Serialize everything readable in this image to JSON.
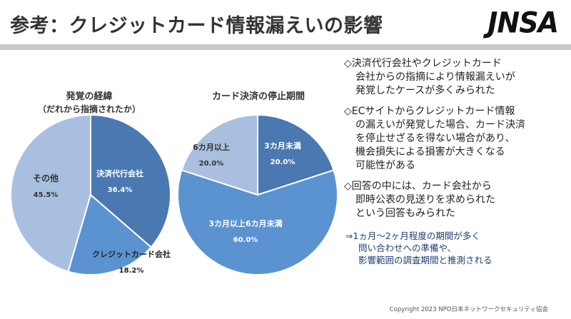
{
  "header": {
    "title": "参考：クレジットカード情報漏えいの影響",
    "logo_text": "JNSA"
  },
  "charts": {
    "chart1": {
      "title": "発覚の経緯",
      "subtitle": "（だれから指摘されたか）"
    },
    "chart2": {
      "title": "カード決済の停止期間"
    }
  },
  "chart_data": [
    {
      "type": "pie",
      "title": "発覚の経緯",
      "subtitle": "（だれから指摘されたか）",
      "slices": [
        {
          "label": "決済代行会社",
          "value": 36.4,
          "value_label": "36.4%",
          "color": "#4a78b0"
        },
        {
          "label": "クレジットカード会社",
          "value": 18.2,
          "value_label": "18.2%",
          "color": "#5b93d1"
        },
        {
          "label": "その他",
          "value": 45.5,
          "value_label": "45.5%",
          "color": "#a8bfe0"
        }
      ]
    },
    {
      "type": "pie",
      "title": "カード決済の停止期間",
      "slices": [
        {
          "label": "3カ月未満",
          "value": 20.0,
          "value_label": "20.0%",
          "color": "#4a78b0"
        },
        {
          "label": "3カ月以上6カ月未満",
          "value": 60.0,
          "value_label": "60.0%",
          "color": "#5b93d1"
        },
        {
          "label": "6カ月以上",
          "value": 20.0,
          "value_label": "20.0%",
          "color": "#a8bfe0"
        }
      ]
    }
  ],
  "notes": [
    {
      "lines": [
        "◇決済代行会社やクレジットカード",
        "会社からの指摘により情報漏えいが",
        "発覚したケースが多くみられた"
      ]
    },
    {
      "lines": [
        "◇ECサイトからクレジットカード情報",
        "の漏えいが発覚した場合、カード決済",
        "を停止せざるを得ない場合があり、",
        "機会損失による損害が大きくなる",
        "可能性がある"
      ]
    },
    {
      "lines": [
        "◇回答の中には、カード会社から",
        "即時公表の見送りを求められた",
        "という回答もみられた"
      ]
    }
  ],
  "sub_note": {
    "lines": [
      "⇒1ヵ月～2ヶ月程度の期間が多く",
      "問い合わせへの準備や、",
      "影響範囲の調査期間と推測される"
    ]
  },
  "footer": {
    "text": "Copyright  2023   NPO日本ネットワークセキュリティ協会"
  }
}
